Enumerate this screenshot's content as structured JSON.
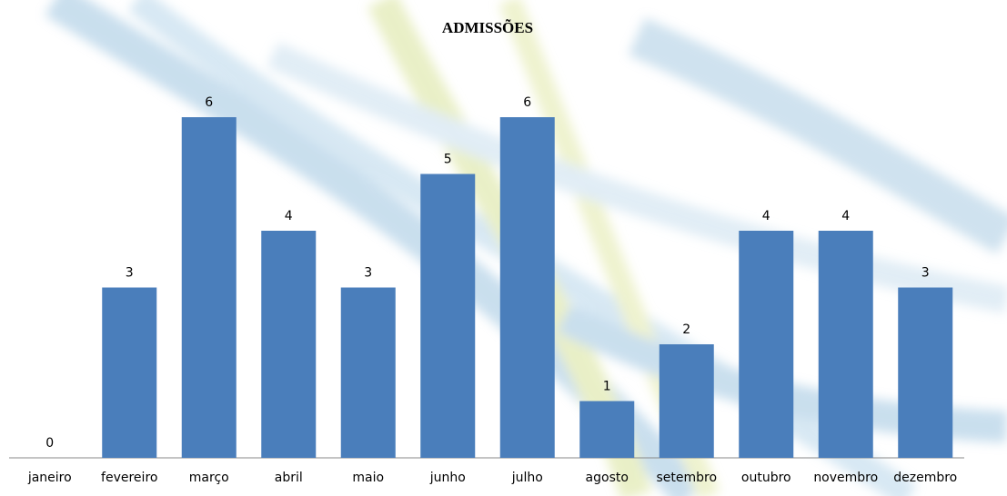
{
  "chart_data": {
    "type": "bar",
    "title": "ADMISSÕES",
    "categories": [
      "janeiro",
      "fevereiro",
      "março",
      "abril",
      "maio",
      "junho",
      "julho",
      "agosto",
      "setembro",
      "outubro",
      "novembro",
      "dezembro"
    ],
    "values": [
      0,
      3,
      6,
      4,
      3,
      5,
      6,
      1,
      2,
      4,
      4,
      3
    ],
    "color": "#4a7ebb"
  }
}
